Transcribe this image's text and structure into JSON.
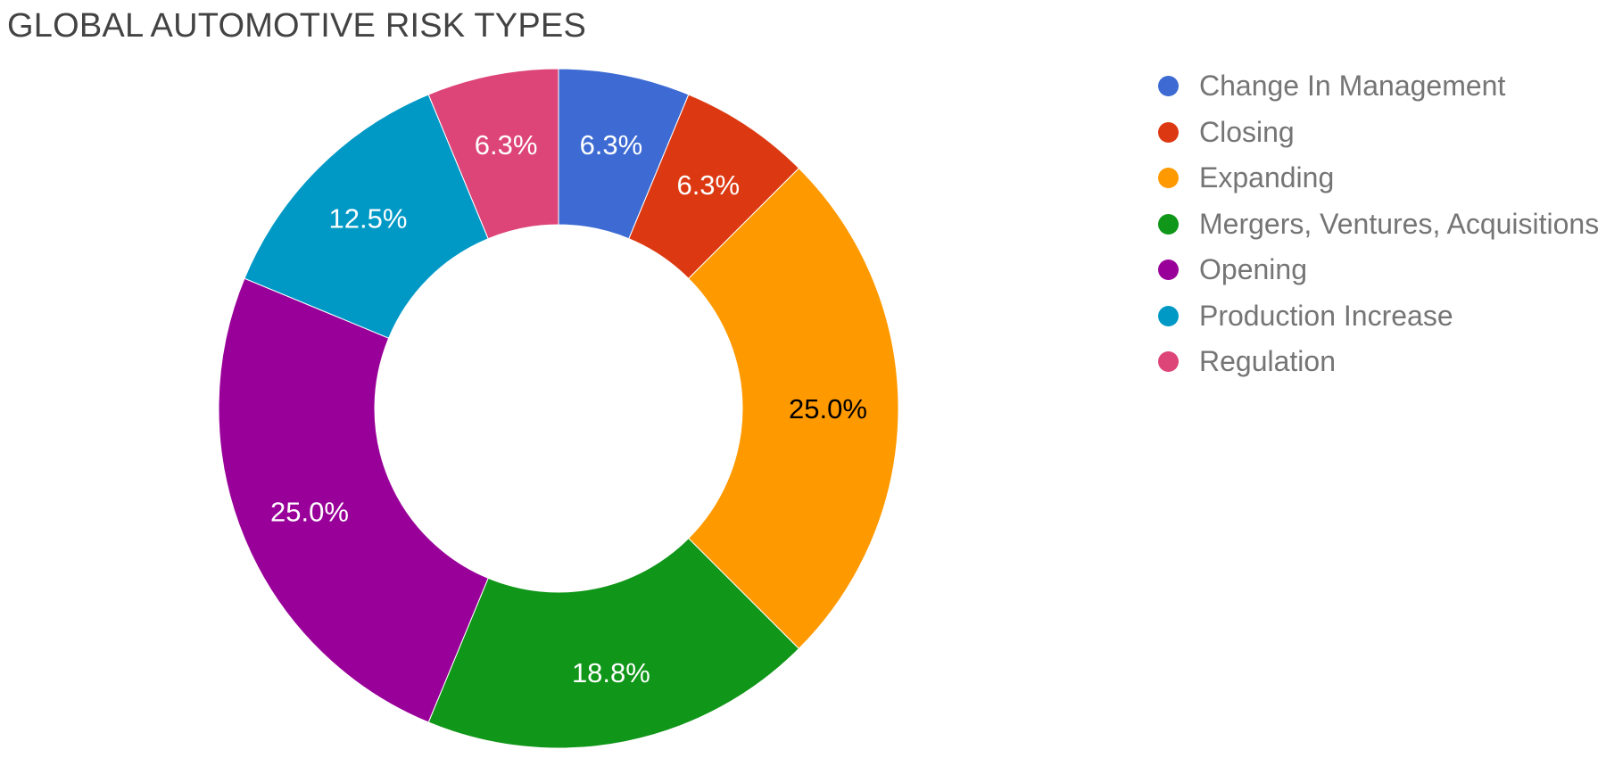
{
  "title": "GLOBAL AUTOMOTIVE RISK TYPES",
  "legend": {
    "position": "right",
    "items": [
      {
        "label": "Change In Management",
        "color": "#3D6BD3"
      },
      {
        "label": "Closing",
        "color": "#DC3912"
      },
      {
        "label": "Expanding",
        "color": "#FF9900"
      },
      {
        "label": "Mergers, Ventures, Acquisitions",
        "color": "#109618"
      },
      {
        "label": "Opening",
        "color": "#990099"
      },
      {
        "label": "Production Increase",
        "color": "#0099C6"
      },
      {
        "label": "Regulation",
        "color": "#DD4477"
      }
    ]
  },
  "chart_data": {
    "type": "pie",
    "subtype": "donut",
    "title": "GLOBAL AUTOMOTIVE RISK TYPES",
    "categories": [
      "Change In Management",
      "Closing",
      "Expanding",
      "Mergers, Ventures, Acquisitions",
      "Opening",
      "Production Increase",
      "Regulation"
    ],
    "values_percent": [
      6.3,
      6.3,
      25.0,
      18.8,
      25.0,
      12.5,
      6.3
    ],
    "slice_labels": [
      "6.3%",
      "6.3%",
      "25.0%",
      "18.8%",
      "25.0%",
      "12.5%",
      "6.3%"
    ],
    "angles_deg": [
      22.5,
      22.5,
      90,
      67.5,
      90,
      45,
      22.5
    ],
    "colors": [
      "#3D6BD3",
      "#DC3912",
      "#FF9900",
      "#109618",
      "#990099",
      "#0099C6",
      "#DD4477"
    ],
    "slice_label_colors": [
      "#ffffff",
      "#ffffff",
      "#000000",
      "#ffffff",
      "#ffffff",
      "#ffffff",
      "#ffffff"
    ],
    "hole_ratio": 0.54,
    "start_at": "top",
    "direction": "clockwise",
    "legend_position": "right",
    "background": "#ffffff",
    "grid": "off"
  }
}
